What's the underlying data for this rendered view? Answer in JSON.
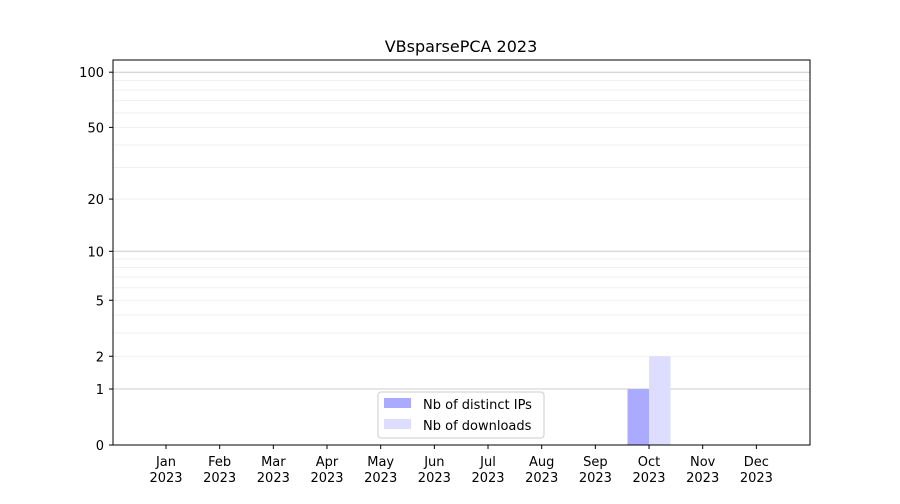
{
  "chart_data": {
    "type": "bar",
    "title": "VBsparsePCA 2023",
    "xlabel": "",
    "ylabel": "",
    "yscale": "log(1+y)",
    "ylim": [
      0,
      116
    ],
    "grid": true,
    "legend_placement": "lower-center",
    "y_ticks": [
      0,
      1,
      2,
      5,
      10,
      20,
      50,
      100
    ],
    "categories": [
      "Jan\n2023",
      "Feb\n2023",
      "Mar\n2023",
      "Apr\n2023",
      "May\n2023",
      "Jun\n2023",
      "Jul\n2023",
      "Aug\n2023",
      "Sep\n2023",
      "Oct\n2023",
      "Nov\n2023",
      "Dec\n2023"
    ],
    "series": [
      {
        "name": "Nb of distinct IPs",
        "color": "#aaaaff",
        "values": [
          0,
          0,
          0,
          0,
          0,
          0,
          0,
          0,
          0,
          1,
          0,
          0
        ]
      },
      {
        "name": "Nb of downloads",
        "color": "#ddddff",
        "values": [
          0,
          0,
          0,
          0,
          0,
          0,
          0,
          0,
          0,
          2,
          0,
          0
        ]
      }
    ]
  }
}
